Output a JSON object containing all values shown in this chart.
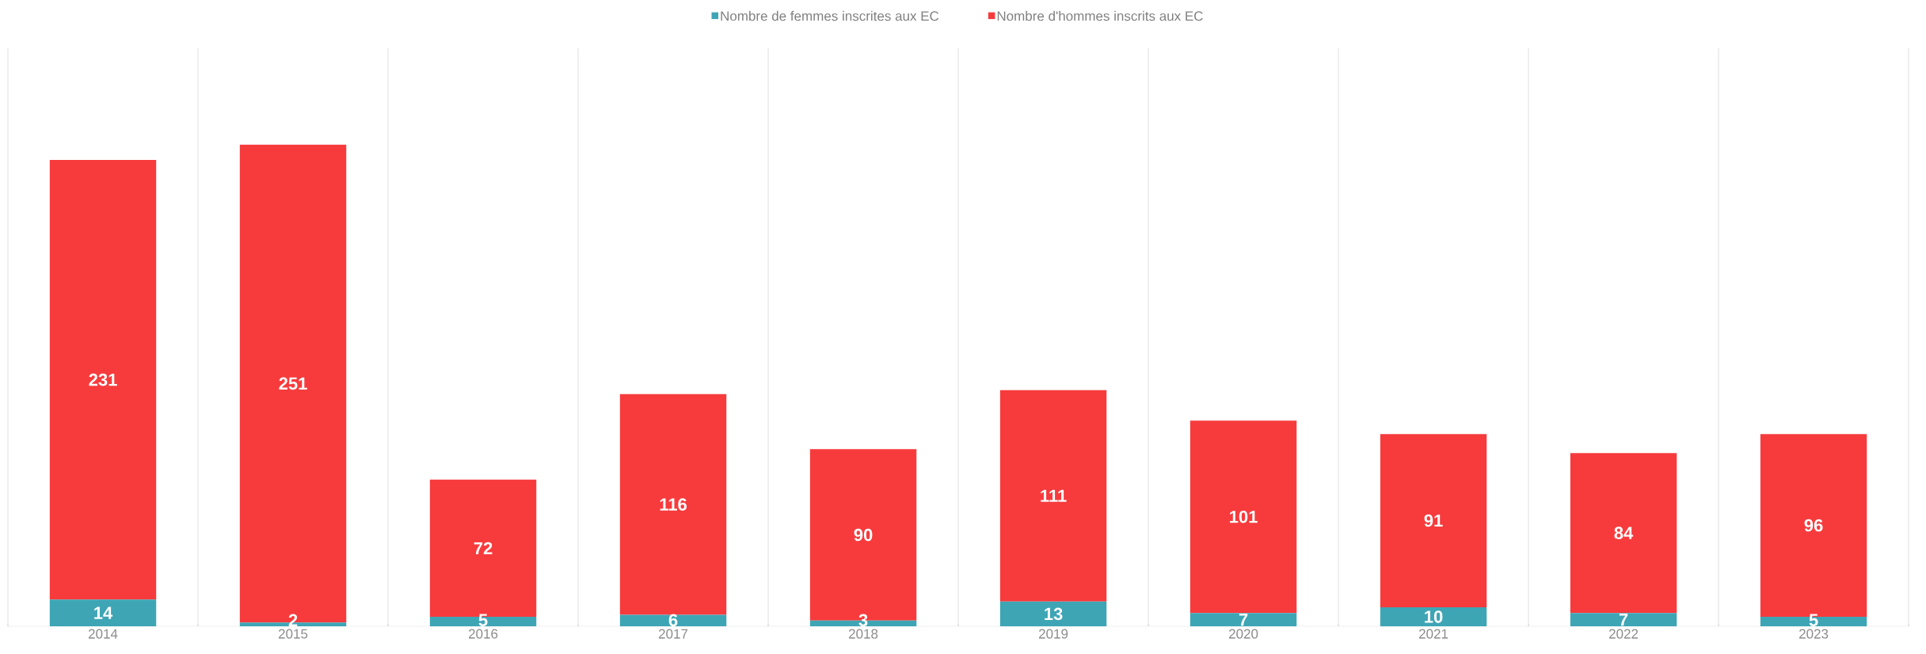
{
  "chart_data": {
    "type": "bar",
    "stacked": true,
    "data_labels": true,
    "grid": "x",
    "legend": "top",
    "categories": [
      "2014",
      "2015",
      "2016",
      "2017",
      "2018",
      "2019",
      "2020",
      "2021",
      "2022",
      "2023"
    ],
    "series": [
      {
        "name": "Nombre de femmes inscrites aux EC",
        "color": "#3ea5b5",
        "values": [
          14,
          2,
          5,
          6,
          3,
          13,
          7,
          10,
          7,
          5
        ]
      },
      {
        "name": "Nombre d'hommes inscrits aux EC",
        "color": "#f73b3d",
        "values": [
          231,
          251,
          72,
          116,
          90,
          111,
          101,
          91,
          84,
          96
        ]
      }
    ]
  }
}
